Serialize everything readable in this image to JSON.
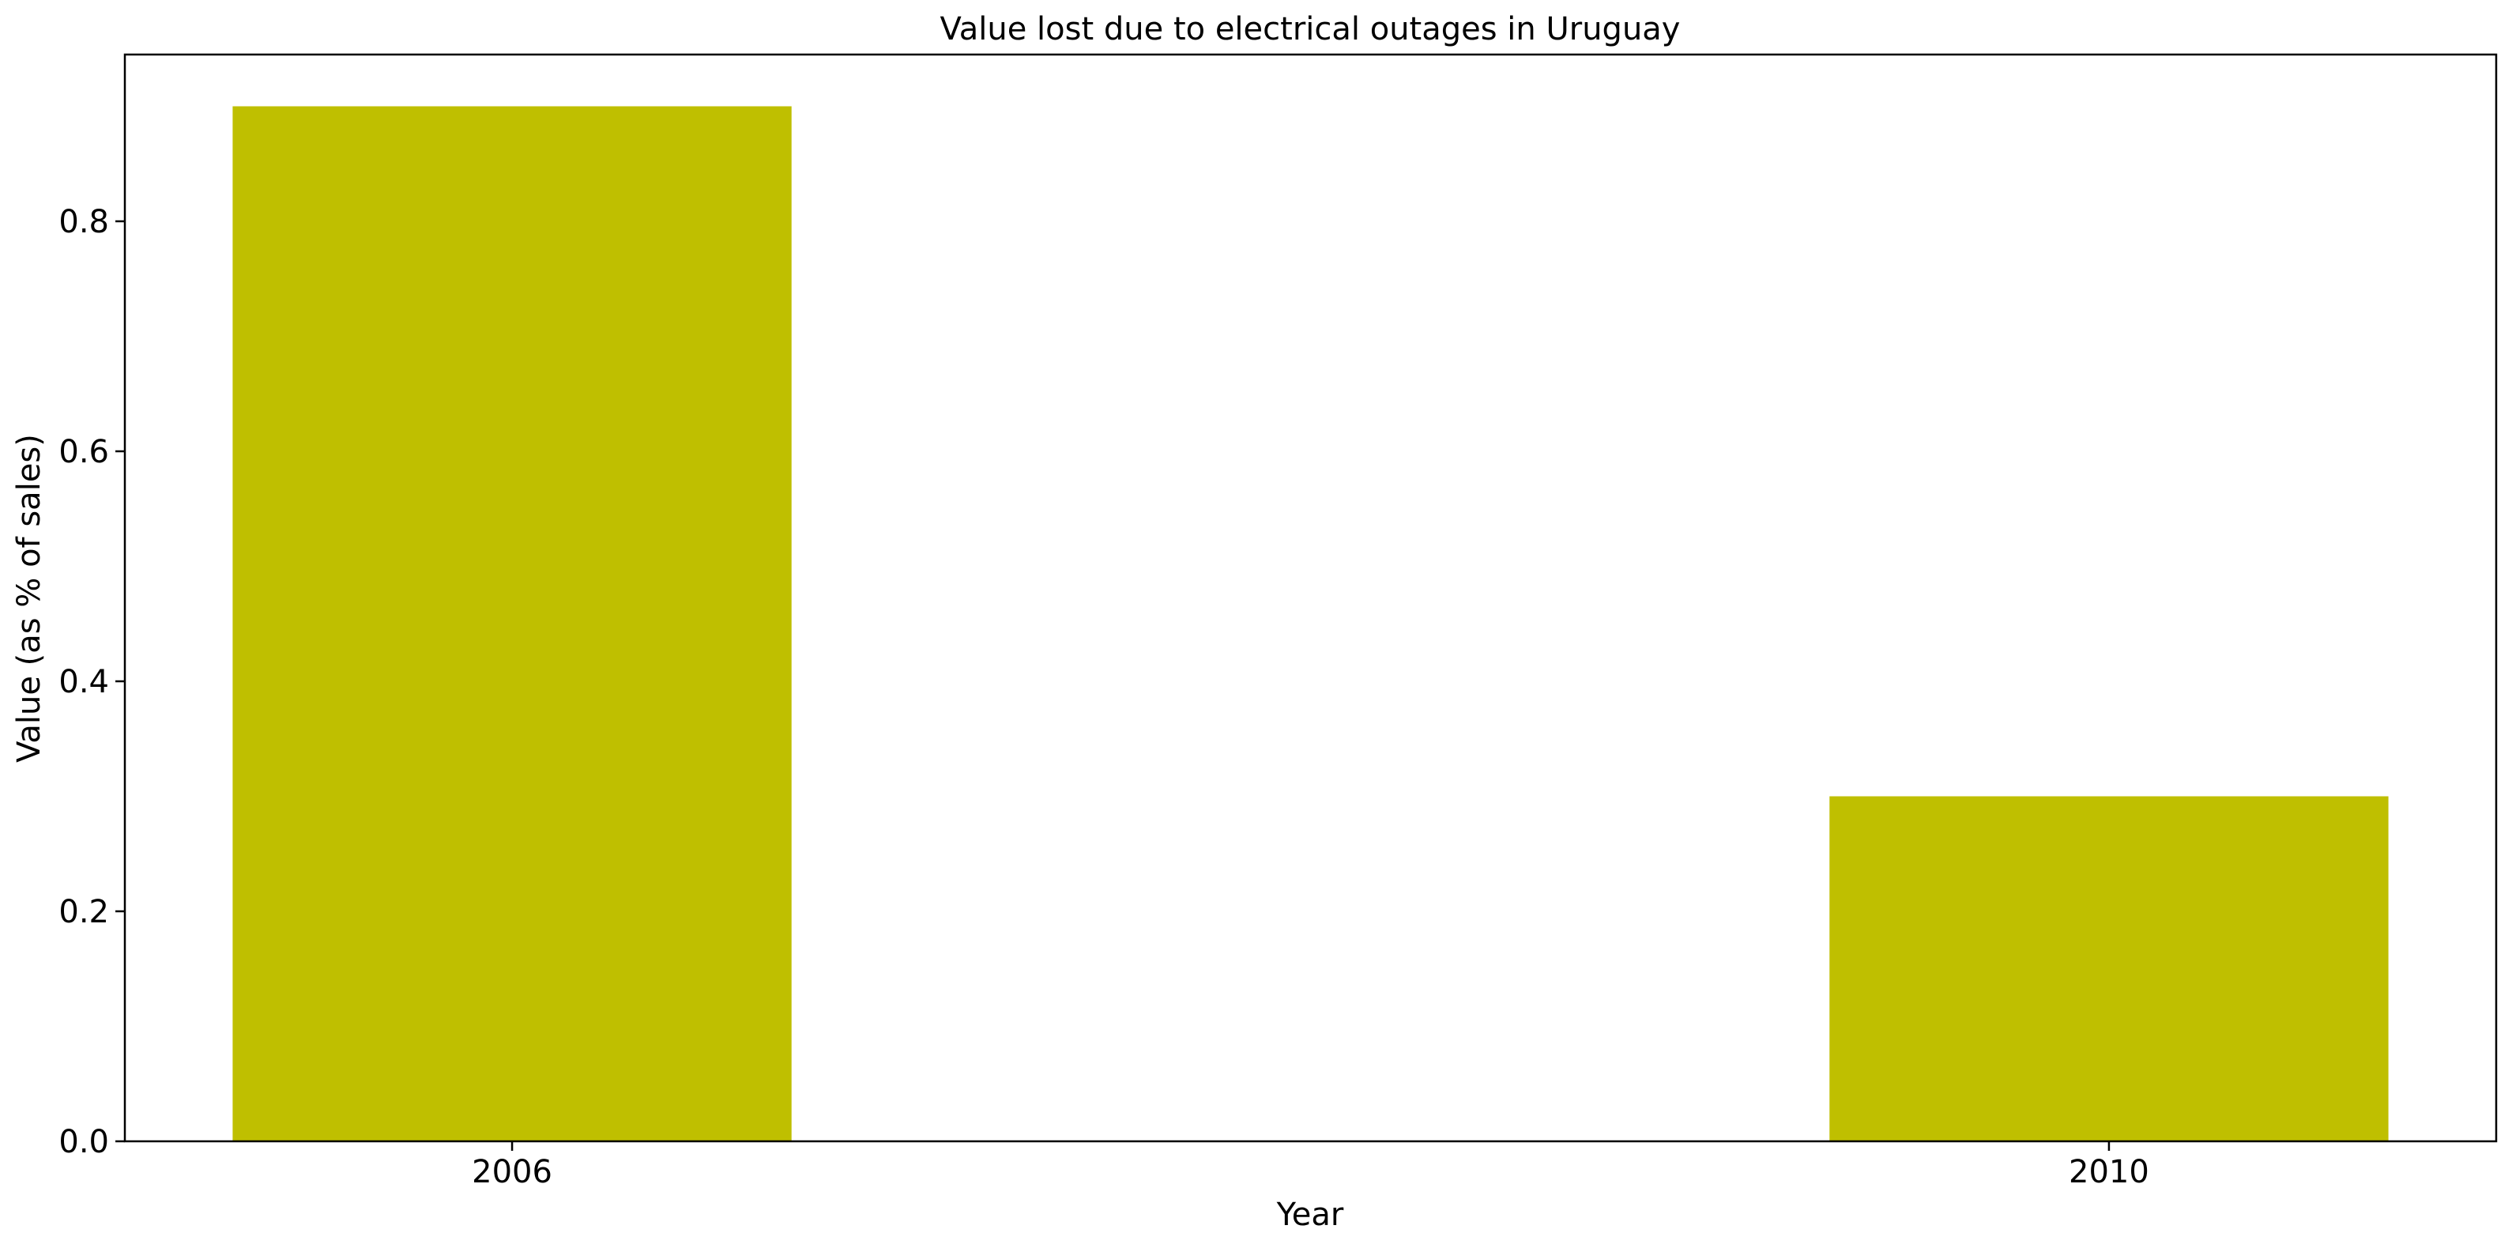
{
  "chart_data": {
    "type": "bar",
    "title": "Value lost due to electrical outages in Uruguay",
    "xlabel": "Year",
    "ylabel": "Value (as % of sales)",
    "categories": [
      "2006",
      "2010"
    ],
    "x": [
      2006,
      2010
    ],
    "values": [
      0.9,
      0.3
    ],
    "xlim": [
      2005.03,
      2010.97
    ],
    "ylim": [
      0,
      0.945
    ],
    "yticks": [
      0.0,
      0.2,
      0.4,
      0.6,
      0.8
    ],
    "ytick_labels": [
      "0.0",
      "0.2",
      "0.4",
      "0.6",
      "0.8"
    ],
    "bar_width": 1.4,
    "bar_color": "#bfbf00",
    "grid": false,
    "legend": "none"
  }
}
